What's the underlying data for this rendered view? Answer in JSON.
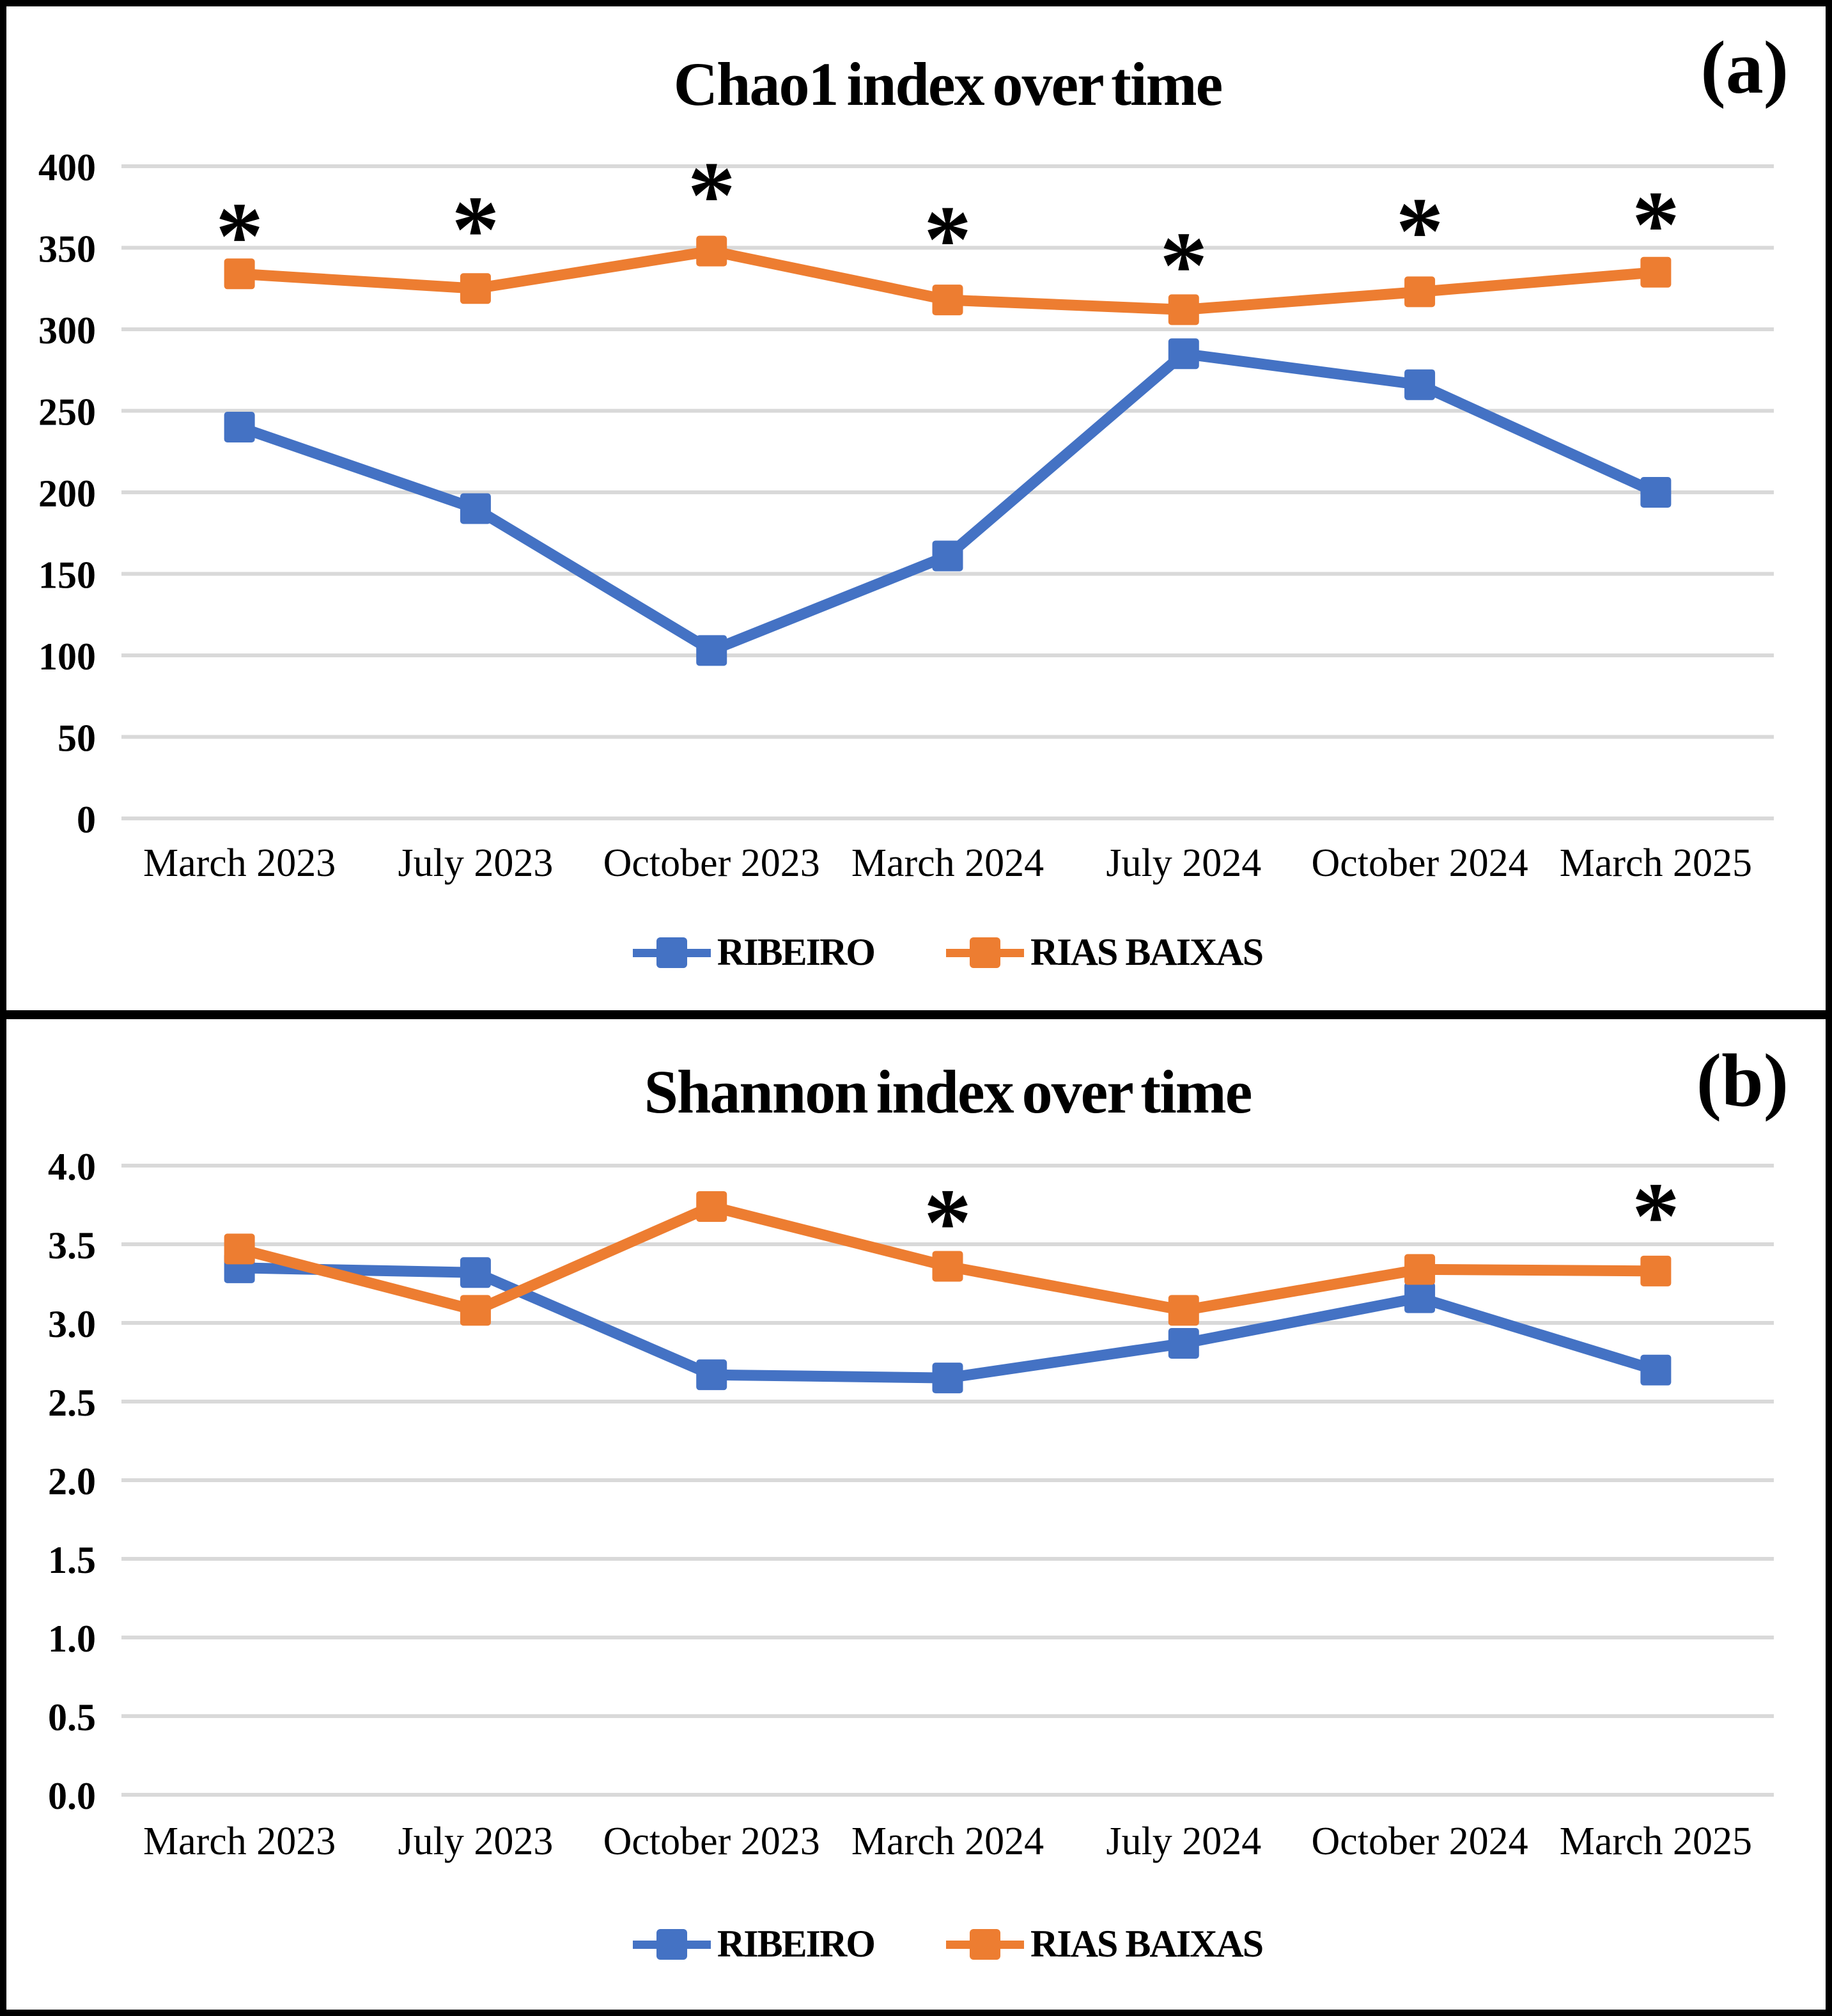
{
  "figure": {
    "background": "#ffffff",
    "border_color": "#000000",
    "text_color": "#000000"
  },
  "colors": {
    "ribeiro_blue": "#4472C4",
    "rias_baixas_orange": "#ED7D31",
    "gridline_gray": "#D9D9D9"
  },
  "chart_data": [
    {
      "type": "line",
      "title": "Chao1 index over time",
      "panel_label": "(a)",
      "categories": [
        "March 2023",
        "July 2023",
        "October 2023",
        "March 2024",
        "July 2024",
        "October 2024",
        "March 2025"
      ],
      "series": [
        {
          "name": "RIBEIRO",
          "color": "#4472C4",
          "marker": "square",
          "values": [
            240,
            190,
            103,
            161,
            285,
            266,
            200
          ]
        },
        {
          "name": "RIAS BAIXAS",
          "color": "#ED7D31",
          "marker": "square",
          "values": [
            334,
            325,
            348,
            318,
            312,
            323,
            335
          ]
        }
      ],
      "xlabel": "",
      "ylabel": "",
      "ylim": [
        0,
        400
      ],
      "ytick_step": 50,
      "ytick_decimals": 0,
      "grid": true,
      "gridline_color": "#D9D9D9",
      "legend_position": "bottom",
      "annotations": [
        {
          "symbol": "*",
          "category_index": 0,
          "y": 365
        },
        {
          "symbol": "*",
          "category_index": 1,
          "y": 369
        },
        {
          "symbol": "*",
          "category_index": 2,
          "y": 390
        },
        {
          "symbol": "*",
          "category_index": 3,
          "y": 363
        },
        {
          "symbol": "*",
          "category_index": 4,
          "y": 347
        },
        {
          "symbol": "*",
          "category_index": 5,
          "y": 368
        },
        {
          "symbol": "*",
          "category_index": 6,
          "y": 372
        }
      ]
    },
    {
      "type": "line",
      "title": "Shannon index over time",
      "panel_label": "(b)",
      "categories": [
        "March 2023",
        "July 2023",
        "October 2023",
        "March 2024",
        "July 2024",
        "October 2024",
        "March 2025"
      ],
      "series": [
        {
          "name": "RIBEIRO",
          "color": "#4472C4",
          "marker": "square",
          "values": [
            3.35,
            3.32,
            2.67,
            2.65,
            2.87,
            3.16,
            2.7
          ]
        },
        {
          "name": "RIAS BAIXAS",
          "color": "#ED7D31",
          "marker": "square",
          "values": [
            3.47,
            3.08,
            3.74,
            3.36,
            3.08,
            3.34,
            3.33
          ]
        }
      ],
      "xlabel": "",
      "ylabel": "",
      "ylim": [
        0,
        4
      ],
      "ytick_step": 0.5,
      "ytick_decimals": 1,
      "grid": true,
      "gridline_color": "#D9D9D9",
      "legend_position": "bottom",
      "annotations": [
        {
          "symbol": "*",
          "category_index": 3,
          "y": 3.72
        },
        {
          "symbol": "*",
          "category_index": 6,
          "y": 3.76
        }
      ]
    }
  ]
}
